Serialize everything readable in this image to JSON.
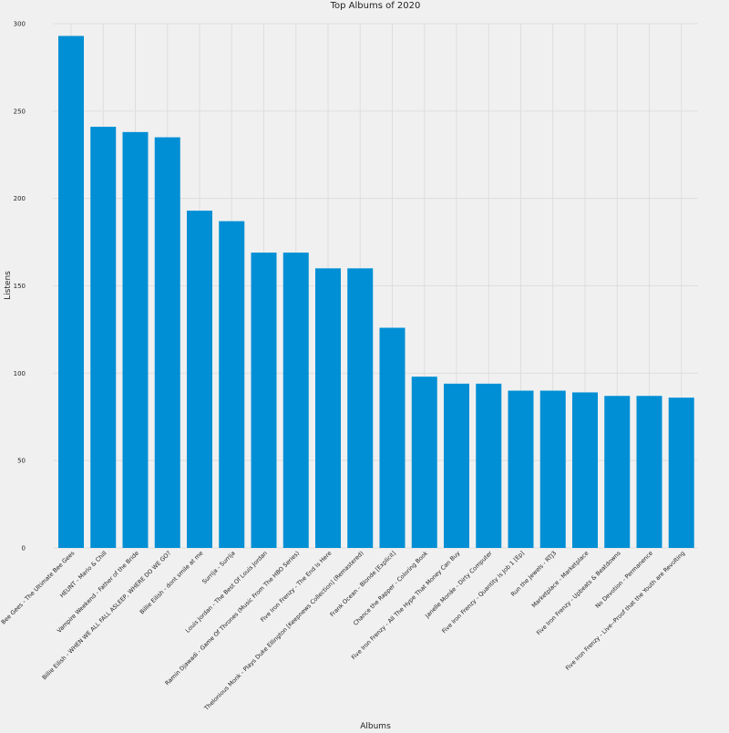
{
  "chart_data": {
    "type": "bar",
    "title": "Top Albums of 2020",
    "xlabel": "Albums",
    "ylabel": "Listens",
    "ylim": [
      0,
      300
    ],
    "yticks": [
      0,
      50,
      100,
      150,
      200,
      250,
      300
    ],
    "grid": true,
    "bar_color": "#008fd5",
    "background": "#f0f0f0",
    "categories": [
      "Bee Gees - The Ultimate Bee Gees",
      "HEUNT - Mario & Chill",
      "Vampire Weekend - Father of the Bride",
      "Billie Eilish - WHEN WE ALL FALL ASLEEP, WHERE DO WE GO?",
      "Billie Eilish - dont smile at me",
      "Surrija - Surrija",
      "Louis Jordan - The Best Of Louis Jordan",
      "Ramin Djawadi - Game Of Thrones (Music From The HBO Series)",
      "Five Iron Frenzy - The End Is Here",
      "Thelonious Monk - Plays Duke Ellington [Keepnews Collection] (Remastered)",
      "Frank Ocean - Blonde [Explicit]",
      "Chance the Rapper - Coloring Book",
      "Five Iron Frenzy - All The Hype That Money Can Buy",
      "Janelle Monáe - Dirty Computer",
      "Five Iron Frenzy - Quantity Is Job 1 [Ep]",
      "Run the Jewels - RTJ3",
      "Marketplace - Marketplace",
      "Five Iron Frenzy - Upbeats & Beatdowns",
      "No Devotion - Permanence",
      "Five Iron Frenzy - Live--Proof that the Youth are Revolting"
    ],
    "values": [
      293,
      241,
      238,
      235,
      193,
      187,
      169,
      169,
      160,
      160,
      126,
      98,
      94,
      94,
      90,
      90,
      89,
      87,
      87,
      86
    ]
  }
}
